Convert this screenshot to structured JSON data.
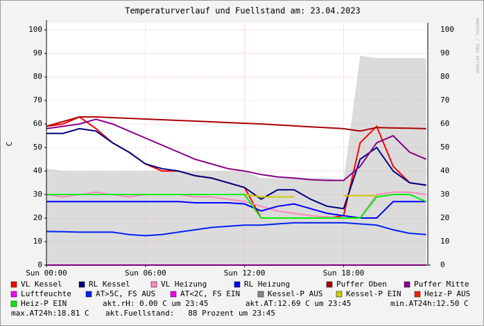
{
  "chart_data": {
    "type": "line",
    "title": "Temperaturverlauf und Fuellstand am: 23.04.2023",
    "y_label": "C",
    "side_label": "RRDTOOL / TOBI OETIKER",
    "grid": true,
    "xlim": [
      0,
      23.1
    ],
    "xticks": [
      {
        "value": 0,
        "label": "Sun 00:00"
      },
      {
        "value": 6,
        "label": "Sun 06:00"
      },
      {
        "value": 12,
        "label": "Sun 12:00"
      },
      {
        "value": 18,
        "label": "Sun 18:00"
      }
    ],
    "ylim": [
      0,
      103
    ],
    "yticks": [
      0,
      10,
      20,
      30,
      40,
      50,
      60,
      70,
      80,
      90,
      100
    ],
    "x": [
      0,
      1,
      2,
      3,
      4,
      5,
      6,
      7,
      8,
      9,
      10,
      11,
      12,
      13,
      14,
      15,
      16,
      17,
      18,
      19,
      20,
      21,
      22,
      23
    ],
    "series": [
      {
        "name": "Kessel-P AUS",
        "color": "#888888",
        "kind": "area",
        "values": [
          41,
          40,
          40,
          40,
          40,
          40,
          40,
          40,
          40,
          40,
          40,
          40,
          40,
          37,
          37,
          37,
          37,
          37,
          36,
          89,
          88,
          88,
          88,
          88
        ]
      },
      {
        "name": "VL Kessel",
        "color": "#ff0000",
        "kind": "line",
        "values": [
          59,
          60,
          63,
          58,
          52,
          48,
          43,
          40,
          40,
          38,
          37,
          35,
          33,
          20,
          20,
          20,
          20,
          20,
          21,
          52,
          59,
          42,
          35,
          34
        ]
      },
      {
        "name": "RL Kessel",
        "color": "#000080",
        "kind": "line",
        "values": [
          56,
          56,
          58,
          57,
          52,
          48,
          43,
          41,
          40,
          38,
          37,
          35,
          33,
          28,
          32,
          32,
          28,
          25,
          24,
          45,
          50,
          40,
          35,
          34
        ]
      },
      {
        "name": "VL Heizung",
        "color": "#ff88bb",
        "kind": "line",
        "values": [
          30,
          29,
          30,
          31,
          30,
          29,
          30,
          30,
          30,
          29,
          29,
          28,
          27,
          25,
          23,
          22,
          21,
          20.5,
          20,
          20,
          30,
          31,
          31,
          30
        ]
      },
      {
        "name": "RL Heizung",
        "color": "#0000ff",
        "kind": "line",
        "values": [
          27,
          27,
          27,
          27,
          27,
          27,
          27,
          27,
          27,
          26.5,
          26.5,
          26.5,
          26,
          23,
          25,
          26,
          24,
          22,
          21,
          20,
          20,
          27,
          27,
          27
        ]
      },
      {
        "name": "Puffer Oben",
        "color": "#aa0000",
        "kind": "line",
        "values": [
          59,
          61,
          63,
          63,
          62.7,
          62.4,
          62.1,
          61.8,
          61.5,
          61.2,
          60.9,
          60.6,
          60.3,
          60,
          59.6,
          59.2,
          58.8,
          58.4,
          58,
          57,
          58.5,
          58.3,
          58.2,
          58
        ]
      },
      {
        "name": "Puffer Mitte",
        "color": "#880088",
        "kind": "line",
        "values": [
          58,
          59,
          60,
          62,
          60,
          57,
          54,
          51,
          48,
          45,
          43,
          41,
          40,
          38.5,
          37.5,
          37,
          36.3,
          36,
          36,
          42,
          52,
          55,
          48,
          45
        ]
      },
      {
        "name": "Luftfeuchte",
        "color": "#ff00ff",
        "kind": "line",
        "values": [
          0,
          0,
          0,
          0,
          0,
          0,
          0,
          0,
          0,
          0,
          0,
          0,
          0,
          0,
          0,
          0,
          0,
          0,
          0,
          0,
          0,
          0,
          0,
          0
        ]
      },
      {
        "name": "AT>5C, FS AUS",
        "color": "#0022ee",
        "kind": "line",
        "values": [
          14.3,
          14.2,
          14,
          14,
          14,
          13,
          12.5,
          13,
          14,
          15,
          16,
          16.5,
          17,
          17,
          17.5,
          18,
          18,
          18,
          18,
          17.5,
          17,
          15,
          13.5,
          13
        ]
      },
      {
        "name": "AT<2C, FS EIN",
        "color": "#ee00ee",
        "kind": "line",
        "values": [
          null,
          null,
          null,
          null,
          null,
          null,
          null,
          null,
          null,
          null,
          null,
          null,
          null,
          null,
          null,
          null,
          null,
          null,
          null,
          null,
          null,
          null,
          null,
          null
        ]
      },
      {
        "name": "Kessel-P EIN",
        "color": "#cccc00",
        "kind": "line",
        "values": [
          30,
          30,
          30,
          30,
          30,
          30,
          30,
          30,
          30,
          30,
          30,
          30,
          30,
          29,
          29,
          29,
          null,
          null,
          29.5,
          29.5,
          29.5,
          null,
          null,
          null
        ]
      },
      {
        "name": "Heiz-P AUS",
        "color": "#ff2200",
        "kind": "line",
        "values": [
          null,
          null,
          null,
          null,
          null,
          null,
          null,
          null,
          null,
          null,
          null,
          null,
          null,
          null,
          null,
          null,
          null,
          null,
          null,
          null,
          null,
          null,
          null,
          null
        ]
      },
      {
        "name": "Heiz-P EIN",
        "color": "#00ee00",
        "kind": "line",
        "values": [
          30,
          30,
          30,
          30,
          30,
          30,
          30,
          30,
          30,
          30,
          30,
          30,
          30,
          20,
          20,
          20,
          20,
          20,
          20,
          20,
          29,
          30,
          30,
          27
        ]
      }
    ],
    "footer": [
      "akt.rH: 0.00 C um 23:45",
      "akt.AT:12.69 C um 23:45",
      "min.AT24h:12.50 C",
      "max.AT24h:18.81 C",
      "akt.Fuellstand:   88 Prozent um 23:45"
    ]
  }
}
